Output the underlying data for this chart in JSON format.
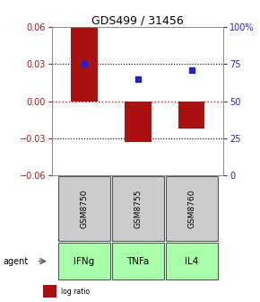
{
  "title": "GDS499 / 31456",
  "samples": [
    "GSM8750",
    "GSM8755",
    "GSM8760"
  ],
  "agents": [
    "IFNg",
    "TNFa",
    "IL4"
  ],
  "log_ratios": [
    0.06,
    -0.033,
    -0.022
  ],
  "percentile_ranks": [
    75.0,
    65.0,
    71.0
  ],
  "ylim_left": [
    -0.06,
    0.06
  ],
  "ylim_right": [
    0,
    100
  ],
  "yticks_left": [
    -0.06,
    -0.03,
    0,
    0.03,
    0.06
  ],
  "yticks_right": [
    0,
    25,
    50,
    75,
    100
  ],
  "ytick_labels_right": [
    "0",
    "25",
    "50",
    "75",
    "100%"
  ],
  "bar_color": "#aa1111",
  "dot_color": "#2222cc",
  "zero_line_color": "#cc1111",
  "background_color": "#ffffff",
  "sample_box_color": "#cccccc",
  "agent_box_color": "#aaffaa",
  "bar_width": 0.5,
  "dot_size": 5,
  "title_fontsize": 9,
  "tick_fontsize": 7,
  "label_fontsize": 6.5,
  "legend_fontsize": 5.5
}
